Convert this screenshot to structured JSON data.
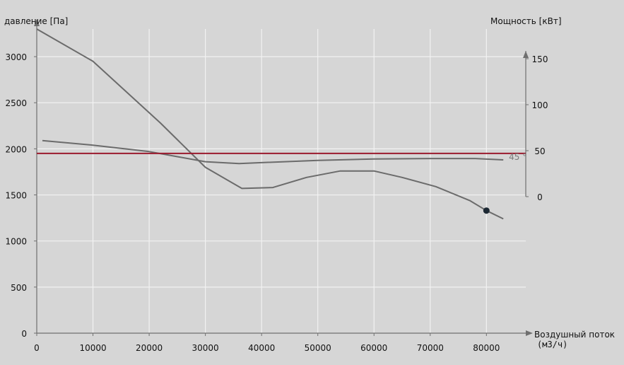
{
  "colors": {
    "background": "#d6d6d6",
    "grid": "#f2f2f2",
    "axis": "#6f6f6f",
    "curve": "#6b6b6b",
    "reference_line": "#9b1b2e",
    "operating_point": "#1c2833"
  },
  "chart_data": {
    "type": "line",
    "xlabel": "Воздушный поток",
    "xunit": "(м3/ч)",
    "ylabel_left": "давление [Па]",
    "ylabel_right": "Мощность [кВт]",
    "xlim": [
      0,
      87000
    ],
    "ylim_left": [
      0,
      3300
    ],
    "ylim_right": [
      0,
      150
    ],
    "x_ticks": [
      "0",
      "10000",
      "20000",
      "30000",
      "40000",
      "50000",
      "60000",
      "70000",
      "80000"
    ],
    "y_ticks_left": [
      "0",
      "500",
      "1000",
      "1500",
      "2000",
      "2500",
      "3000"
    ],
    "y_ticks_right": [
      "0",
      "50",
      "100",
      "150"
    ],
    "grid": true,
    "series": [
      {
        "axis": "left",
        "points": [
          [
            0,
            3300
          ],
          [
            10000,
            2950
          ],
          [
            22000,
            2280
          ],
          [
            30000,
            1800
          ],
          [
            36500,
            1570
          ],
          [
            42000,
            1580
          ],
          [
            48000,
            1690
          ],
          [
            54000,
            1760
          ],
          [
            60000,
            1760
          ],
          [
            65000,
            1690
          ],
          [
            71000,
            1590
          ],
          [
            77000,
            1440
          ],
          [
            80000,
            1330
          ],
          [
            83000,
            1240
          ]
        ]
      },
      {
        "axis": "right",
        "points": [
          [
            1000,
            61
          ],
          [
            10000,
            56
          ],
          [
            20000,
            49
          ],
          [
            30000,
            38
          ],
          [
            36000,
            36
          ],
          [
            40000,
            37
          ],
          [
            50000,
            39.5
          ],
          [
            60000,
            41
          ],
          [
            70000,
            41.5
          ],
          [
            78000,
            41.5
          ],
          [
            83000,
            40
          ]
        ]
      },
      {
        "axis": "left",
        "points": [
          [
            0,
            1950
          ],
          [
            87000,
            1950
          ]
        ]
      }
    ],
    "annotations": [
      {
        "text": "45 °",
        "x": 84000,
        "y": 1920
      }
    ],
    "operating_point": {
      "x": 80000,
      "y": 1330
    }
  }
}
